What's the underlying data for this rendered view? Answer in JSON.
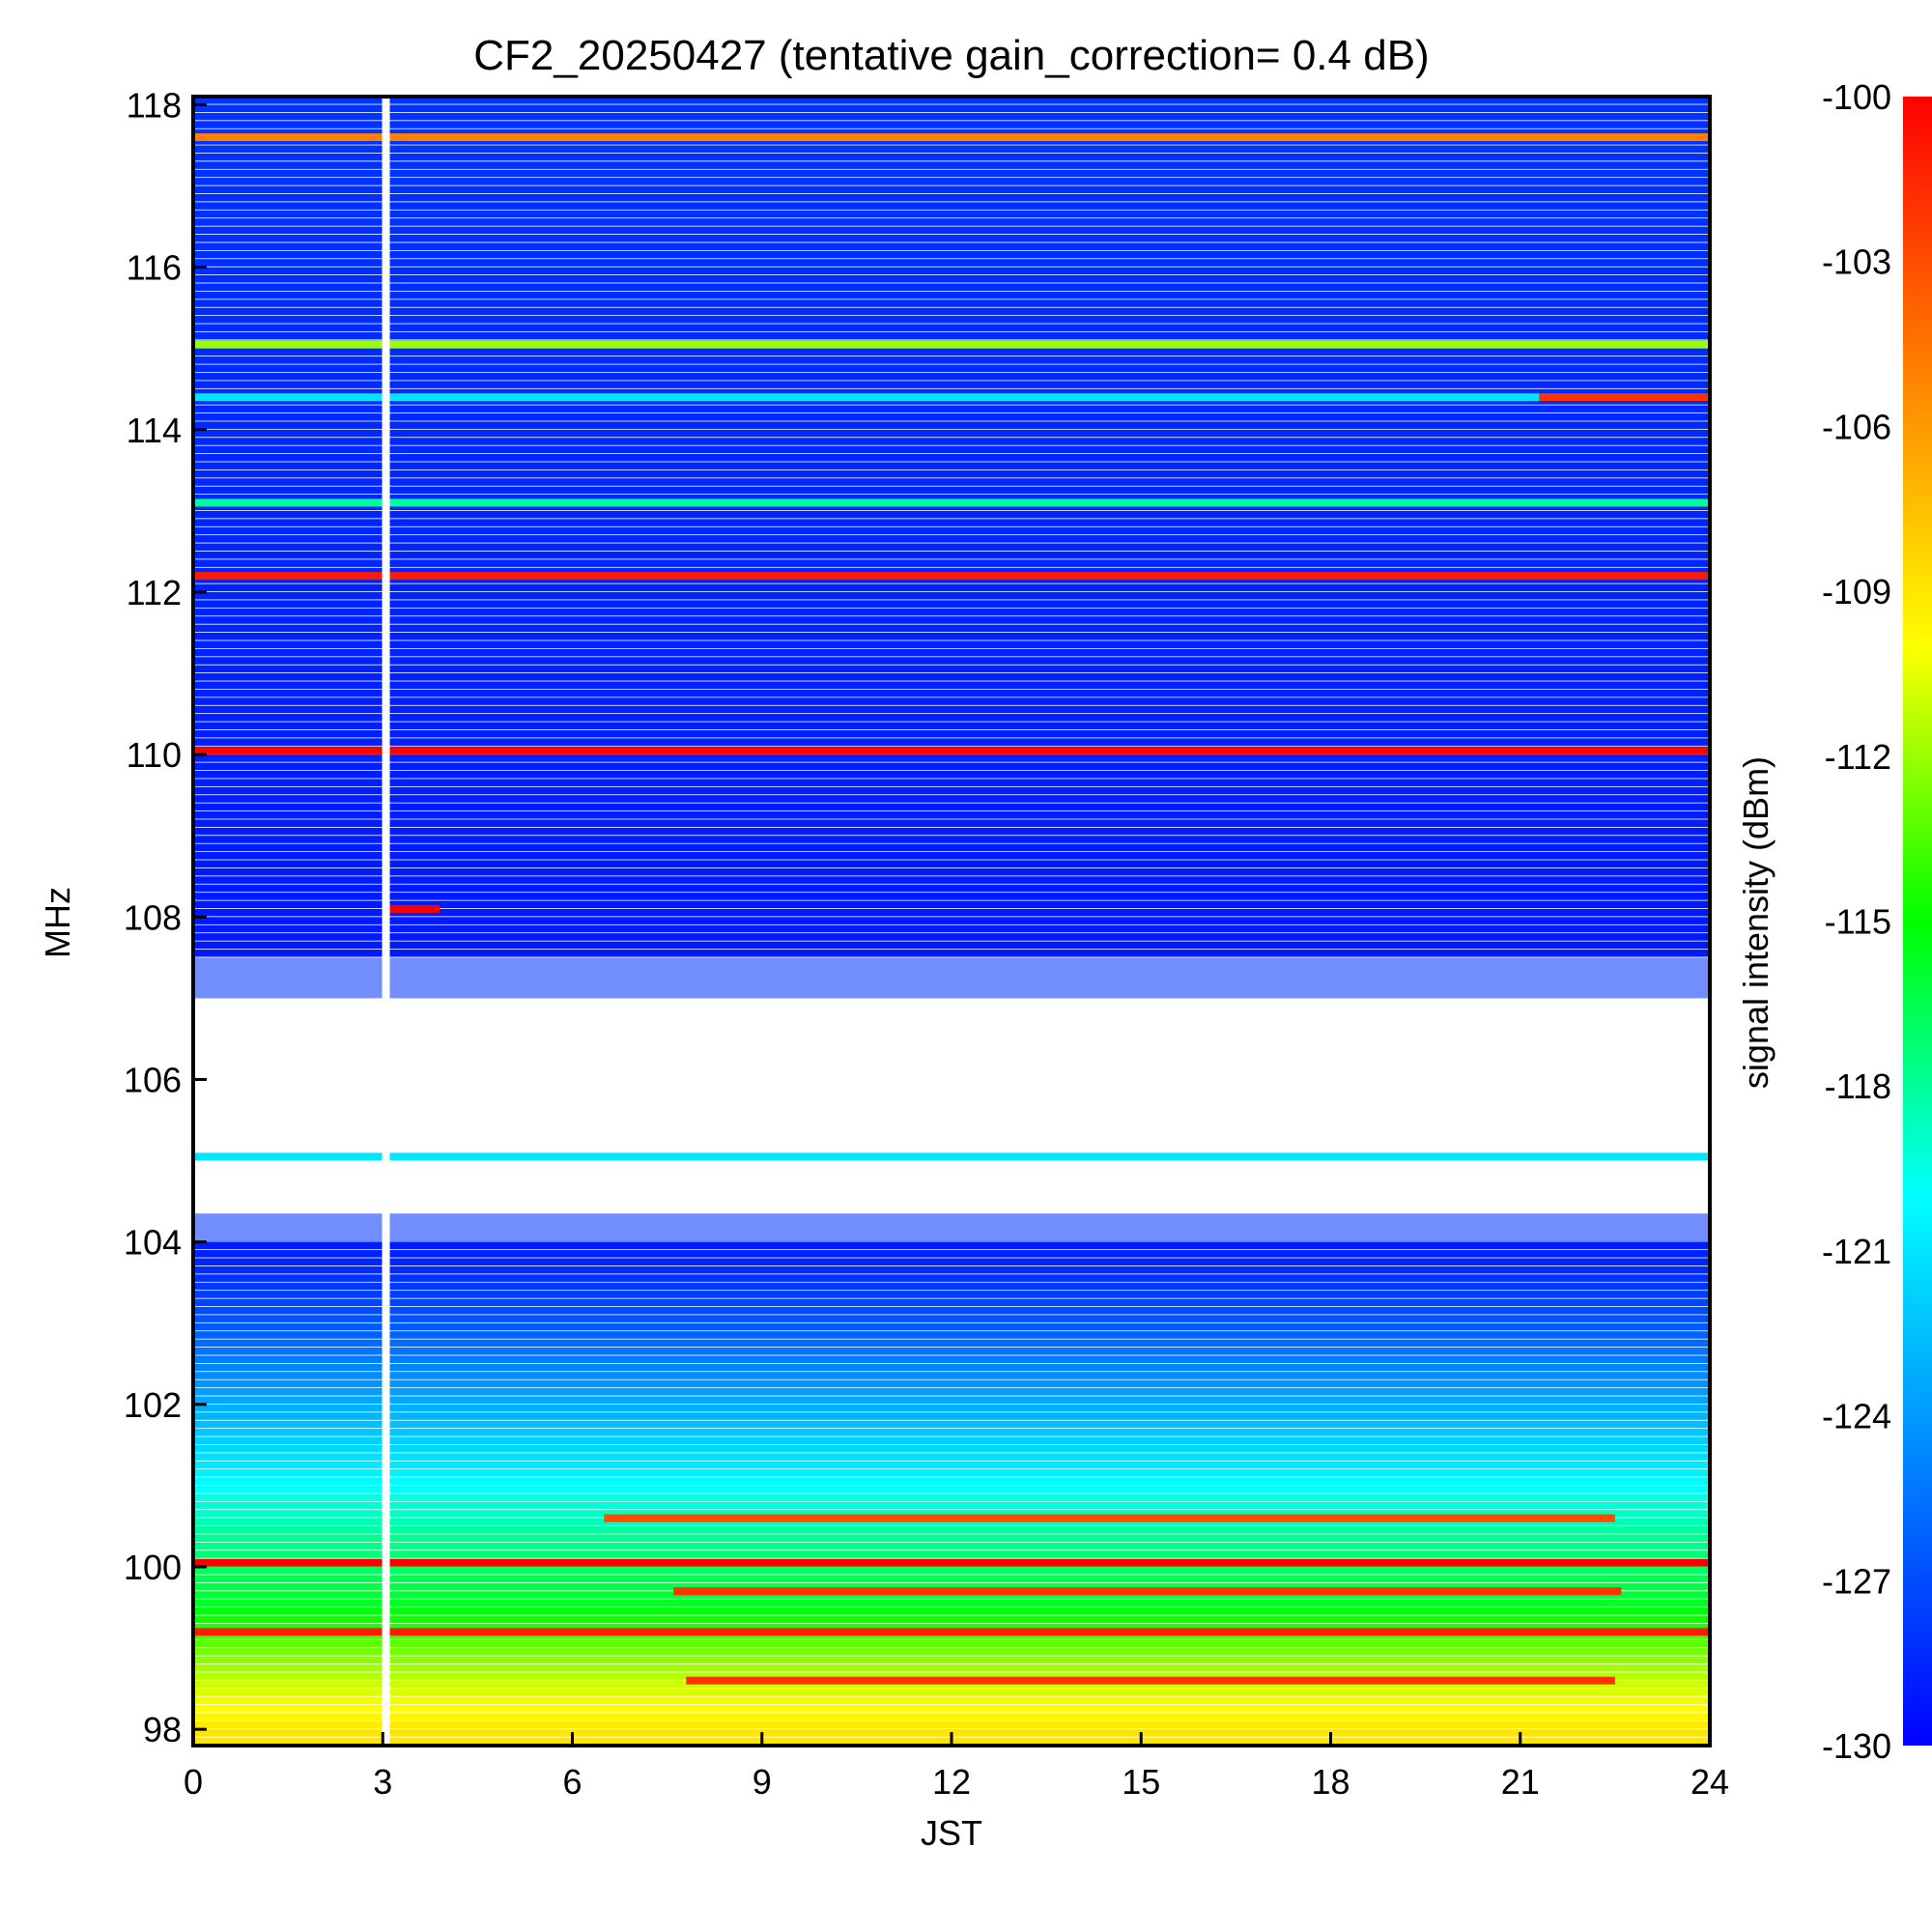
{
  "chart_data": {
    "type": "heatmap",
    "title": "CF2_20250427 (tentative gain_correction=  0.4 dB)",
    "xlabel": "JST",
    "ylabel": "MHz",
    "colorbar_label": "signal intensity (dBm)",
    "xlim": [
      0,
      24
    ],
    "ylim": [
      97.8,
      118.1
    ],
    "x_ticks": [
      0,
      3,
      6,
      9,
      12,
      15,
      18,
      21,
      24
    ],
    "y_ticks": [
      98,
      100,
      102,
      104,
      106,
      108,
      110,
      112,
      114,
      116,
      118
    ],
    "colorbar_range": [
      -130,
      -100
    ],
    "colorbar_ticks": [
      -100,
      -103,
      -106,
      -109,
      -112,
      -115,
      -118,
      -121,
      -124,
      -127,
      -130
    ],
    "colormap": "jet",
    "colormap_stops": [
      "#0000ff",
      "#0080ff",
      "#00ffff",
      "#00ff00",
      "#ffff00",
      "#ff8000",
      "#ff0000"
    ],
    "data_gap_time": 3.05,
    "background_level_by_freq": [
      {
        "freq": 98.0,
        "dbm": -109
      },
      {
        "freq": 98.8,
        "dbm": -112
      },
      {
        "freq": 99.6,
        "dbm": -116
      },
      {
        "freq": 100.4,
        "dbm": -118
      },
      {
        "freq": 101.0,
        "dbm": -120
      },
      {
        "freq": 101.6,
        "dbm": -122
      },
      {
        "freq": 102.2,
        "dbm": -124
      },
      {
        "freq": 102.8,
        "dbm": -126
      },
      {
        "freq": 103.5,
        "dbm": -128
      },
      {
        "freq": 104.0,
        "dbm": -129
      },
      {
        "freq": 108.0,
        "dbm": -129
      },
      {
        "freq": 118.1,
        "dbm": -128
      }
    ],
    "sparse_regions": [
      {
        "freq_start": 104.0,
        "freq_end": 107.5,
        "note": "values below color range shown as white"
      }
    ],
    "emission_lines": [
      {
        "freq": 117.6,
        "t_start": 0,
        "t_end": 24,
        "dbm": -105
      },
      {
        "freq": 115.05,
        "t_start": 0,
        "t_end": 24,
        "dbm": -112
      },
      {
        "freq": 114.4,
        "t_start": 0,
        "t_end": 21.3,
        "dbm": -121
      },
      {
        "freq": 114.4,
        "t_start": 21.3,
        "t_end": 24,
        "dbm": -102
      },
      {
        "freq": 113.1,
        "t_start": 0,
        "t_end": 24,
        "dbm": -118
      },
      {
        "freq": 112.2,
        "t_start": 0,
        "t_end": 24,
        "dbm": -101
      },
      {
        "freq": 110.05,
        "t_start": 0,
        "t_end": 24,
        "dbm": -100
      },
      {
        "freq": 108.1,
        "t_start": 3.0,
        "t_end": 3.9,
        "dbm": -100
      },
      {
        "freq": 105.05,
        "t_start": 0,
        "t_end": 24,
        "dbm": -121
      },
      {
        "freq": 100.05,
        "t_start": 0,
        "t_end": 24,
        "dbm": -100
      },
      {
        "freq": 100.6,
        "t_start": 6.5,
        "t_end": 22.5,
        "dbm": -103
      },
      {
        "freq": 99.7,
        "t_start": 7.6,
        "t_end": 22.6,
        "dbm": -102
      },
      {
        "freq": 99.2,
        "t_start": 0,
        "t_end": 24,
        "dbm": -101
      },
      {
        "freq": 98.6,
        "t_start": 7.8,
        "t_end": 22.5,
        "dbm": -102
      }
    ]
  }
}
